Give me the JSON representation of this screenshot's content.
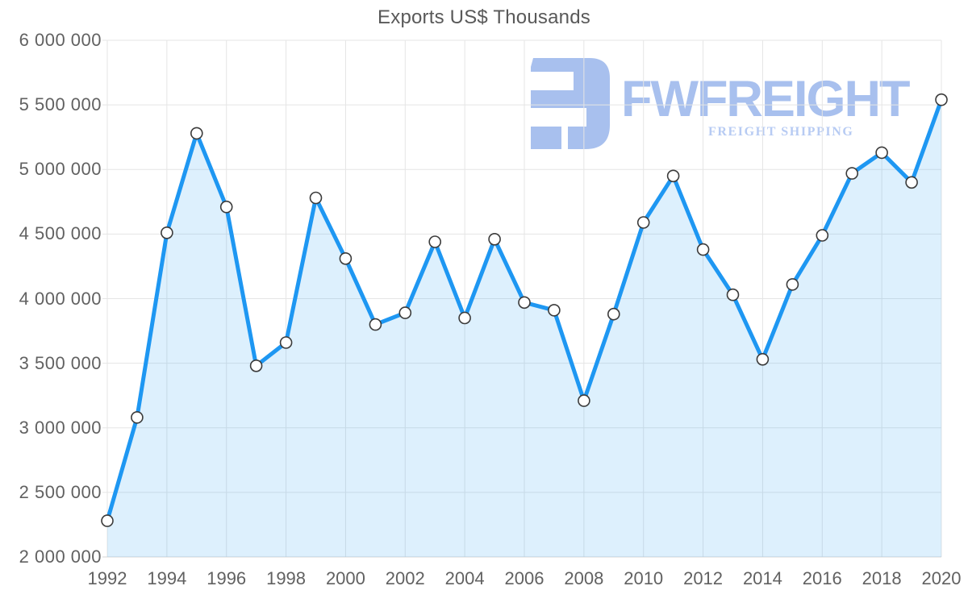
{
  "title": "Exports US$ Thousands",
  "watermark": {
    "brand": "FWFREIGHT",
    "tagline": "FREIGHT SHIPPING"
  },
  "colors": {
    "line": "#1e97f2",
    "area": "#1e97f2",
    "area_opacity": "0.15",
    "marker_fill": "#ffffff",
    "marker_stroke": "#3b3b3b",
    "grid": "#e5e5e5",
    "axis_line": "#d6d6d6",
    "label": "#616161",
    "title": "#595959",
    "watermark_main": "#a8c0ee",
    "watermark_light": "#b7cbf3"
  },
  "chart_data": {
    "type": "area",
    "title": "Exports US$ Thousands",
    "xlabel": "",
    "ylabel": "",
    "grid": true,
    "legend_position": "none",
    "x": [
      1992,
      1993,
      1994,
      1995,
      1996,
      1997,
      1998,
      1999,
      2000,
      2001,
      2002,
      2003,
      2004,
      2005,
      2006,
      2007,
      2008,
      2009,
      2010,
      2011,
      2012,
      2013,
      2014,
      2015,
      2016,
      2017,
      2018,
      2019,
      2020
    ],
    "series": [
      {
        "name": "Exports US$ Thousands",
        "values": [
          2280000,
          3080000,
          4510000,
          5280000,
          4710000,
          3480000,
          3660000,
          4780000,
          4310000,
          3800000,
          3890000,
          4440000,
          3850000,
          4460000,
          3970000,
          3910000,
          3210000,
          3880000,
          4590000,
          4950000,
          4380000,
          4030000,
          3530000,
          4110000,
          4490000,
          4970000,
          5130000,
          4900000,
          5540000
        ]
      }
    ],
    "ylim": [
      2000000,
      6000000
    ],
    "ytick_values": [
      2000000,
      2500000,
      3000000,
      3500000,
      4000000,
      4500000,
      5000000,
      5500000,
      6000000
    ],
    "ytick_labels": [
      "2 000 000",
      "2 500 000",
      "3 000 000",
      "3 500 000",
      "4 000 000",
      "4 500 000",
      "5 000 000",
      "5 500 000",
      "6 000 000"
    ],
    "xtick_values": [
      1992,
      1994,
      1996,
      1998,
      2000,
      2002,
      2004,
      2006,
      2008,
      2010,
      2012,
      2014,
      2016,
      2018,
      2020
    ],
    "xtick_labels": [
      "1992",
      "1994",
      "1996",
      "1998",
      "2000",
      "2002",
      "2004",
      "2006",
      "2008",
      "2010",
      "2012",
      "2014",
      "2016",
      "2018",
      "2020"
    ]
  }
}
